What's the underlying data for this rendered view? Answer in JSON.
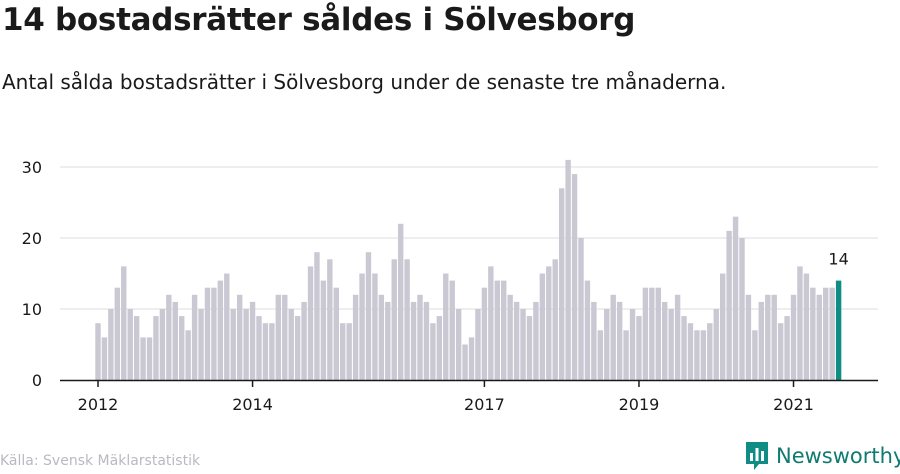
{
  "title": "14 bostadsrätter såldes i Sölvesborg",
  "subtitle": "Antal sålda bostadsrätter i Sölvesborg under de senaste tre månaderna.",
  "source": "Källa: Svensk Mäklarstatistik",
  "brand": "Newsworthy",
  "colors": {
    "bar": "#c9c8d3",
    "highlight": "#0f8c84",
    "grid": "#dedee3",
    "axis": "#1a1a1a",
    "brand": "#0f7a71"
  },
  "chart_data": {
    "type": "bar",
    "title": "14 bostadsrätter såldes i Sölvesborg",
    "subtitle": "Antal sålda bostadsrätter i Sölvesborg under de senaste tre månaderna.",
    "xlabel": "",
    "ylabel": "",
    "ylim": [
      0,
      30
    ],
    "yticks": [
      0,
      10,
      20,
      30
    ],
    "xtick_labels": [
      "2012",
      "2014",
      "2017",
      "2019",
      "2021"
    ],
    "xtick_bar_index": [
      0,
      24,
      60,
      84,
      108
    ],
    "grid": true,
    "highlight_label": "14",
    "values": [
      8,
      6,
      10,
      13,
      16,
      10,
      9,
      6,
      6,
      9,
      10,
      12,
      11,
      9,
      7,
      12,
      10,
      13,
      13,
      14,
      15,
      10,
      12,
      10,
      11,
      9,
      8,
      8,
      12,
      12,
      10,
      9,
      11,
      16,
      18,
      14,
      17,
      13,
      8,
      8,
      12,
      15,
      18,
      15,
      12,
      11,
      17,
      22,
      17,
      11,
      12,
      11,
      8,
      9,
      15,
      14,
      10,
      5,
      6,
      10,
      13,
      16,
      14,
      14,
      12,
      11,
      10,
      9,
      11,
      15,
      16,
      17,
      27,
      31,
      29,
      20,
      14,
      11,
      7,
      10,
      12,
      11,
      7,
      10,
      9,
      13,
      13,
      13,
      11,
      10,
      12,
      9,
      8,
      7,
      7,
      8,
      10,
      15,
      21,
      23,
      20,
      12,
      7,
      11,
      12,
      12,
      8,
      9,
      12,
      16,
      15,
      13,
      12,
      13,
      13,
      14
    ]
  }
}
